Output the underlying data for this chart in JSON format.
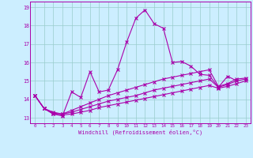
{
  "xlabel": "Windchill (Refroidissement éolien,°C)",
  "background_color": "#cceeff",
  "line_color": "#aa00aa",
  "grid_color": "#99cccc",
  "xlim": [
    -0.5,
    23.5
  ],
  "ylim": [
    12.7,
    19.3
  ],
  "yticks": [
    13,
    14,
    15,
    16,
    17,
    18,
    19
  ],
  "xticks": [
    0,
    1,
    2,
    3,
    4,
    5,
    6,
    7,
    8,
    9,
    10,
    11,
    12,
    13,
    14,
    15,
    16,
    17,
    18,
    19,
    20,
    21,
    22,
    23
  ],
  "lines": [
    {
      "x": [
        0,
        1,
        2,
        3,
        4,
        5,
        6,
        7,
        8,
        9,
        10,
        11,
        12,
        13,
        14,
        15,
        16,
        17,
        18,
        19,
        20,
        21,
        22
      ],
      "y": [
        14.2,
        13.5,
        13.2,
        13.1,
        14.4,
        14.1,
        15.5,
        14.4,
        14.5,
        15.6,
        17.1,
        18.4,
        18.85,
        18.1,
        17.85,
        16.0,
        16.05,
        15.8,
        15.35,
        15.3,
        14.65,
        15.25,
        15.0
      ]
    },
    {
      "x": [
        0,
        1,
        2,
        3,
        4,
        5,
        6,
        7,
        8,
        9,
        10,
        11,
        12,
        13,
        14,
        15,
        16,
        17,
        18,
        19,
        20,
        21,
        22,
        23
      ],
      "y": [
        14.2,
        13.5,
        13.2,
        13.15,
        13.2,
        13.3,
        13.4,
        13.55,
        13.65,
        13.75,
        13.85,
        13.95,
        14.05,
        14.15,
        14.25,
        14.35,
        14.45,
        14.55,
        14.65,
        14.75,
        14.6,
        14.7,
        14.85,
        15.0
      ]
    },
    {
      "x": [
        0,
        1,
        2,
        3,
        4,
        5,
        6,
        7,
        8,
        9,
        10,
        11,
        12,
        13,
        14,
        15,
        16,
        17,
        18,
        19,
        20,
        21,
        22,
        23
      ],
      "y": [
        14.2,
        13.5,
        13.25,
        13.2,
        13.3,
        13.45,
        13.6,
        13.75,
        13.9,
        14.0,
        14.1,
        14.2,
        14.35,
        14.5,
        14.6,
        14.7,
        14.8,
        14.9,
        15.0,
        15.1,
        14.65,
        14.8,
        15.0,
        15.1
      ]
    },
    {
      "x": [
        0,
        1,
        2,
        3,
        4,
        5,
        6,
        7,
        8,
        9,
        10,
        11,
        12,
        13,
        14,
        15,
        16,
        17,
        18,
        19,
        20,
        21,
        22,
        23
      ],
      "y": [
        14.2,
        13.5,
        13.3,
        13.2,
        13.4,
        13.6,
        13.8,
        14.0,
        14.2,
        14.35,
        14.5,
        14.65,
        14.8,
        14.95,
        15.1,
        15.2,
        15.3,
        15.4,
        15.5,
        15.6,
        14.7,
        14.85,
        15.1,
        15.15
      ]
    }
  ]
}
